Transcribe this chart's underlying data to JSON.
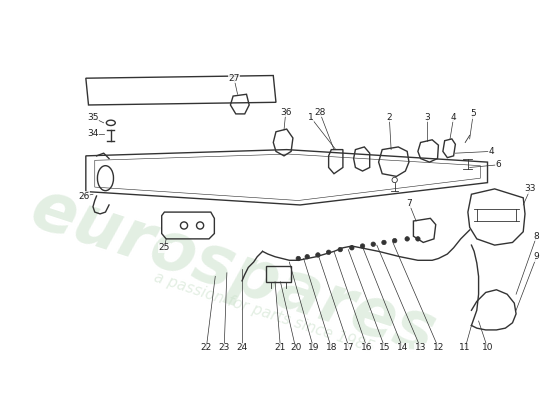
{
  "background_color": "#ffffff",
  "watermark_text": "eurospares",
  "watermark_subtext": "a passion for parts since 1985",
  "watermark_color": "#c8dfc8",
  "watermark_alpha": 0.5,
  "line_color": "#333333",
  "line_width": 1.0,
  "thin_line": 0.6,
  "label_fontsize": 6.5,
  "label_color": "#222222"
}
